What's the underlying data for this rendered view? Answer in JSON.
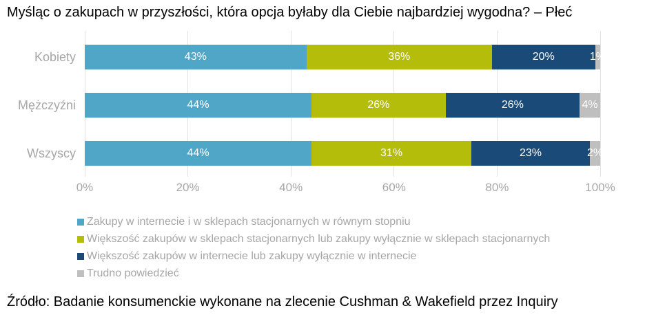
{
  "title": "Myśląc o zakupach w przyszłości, która opcja byłaby dla Ciebie najbardziej wygodna? – Płeć",
  "source": "Źródło: Badanie konsumenckie wykonane na zlecenie Cushman & Wakefield przez Inquiry",
  "chart_data": {
    "type": "bar",
    "orientation": "horizontal",
    "stacked": true,
    "unit": "%",
    "title": "Myśląc o zakupach w przyszłości, która opcja byłaby dla Ciebie najbardziej wygodna? – Płeć",
    "categories": [
      "Kobiety",
      "Mężczyźni",
      "Wszyscy"
    ],
    "series": [
      {
        "name": "Zakupy w internecie i w sklepach stacjonarnych w równym stopniu",
        "color": "#4fa6c6",
        "values": [
          43,
          44,
          44
        ]
      },
      {
        "name": "Większość zakupów w sklepach stacjonarnych lub zakupy wyłącznie w sklepach stacjonarnych",
        "color": "#b5bd0b",
        "values": [
          36,
          26,
          31
        ]
      },
      {
        "name": "Większość zakupów w internecie lub zakupy wyłącznie w internecie",
        "color": "#1a4a78",
        "values": [
          20,
          26,
          23
        ]
      },
      {
        "name": "Trudno powiedzieć",
        "color": "#bfbfbf",
        "values": [
          1,
          4,
          2
        ]
      }
    ],
    "data_labels": true,
    "data_label_format": "{value}%",
    "xlim": [
      0,
      100
    ],
    "x_ticks": [
      {
        "value": 0,
        "label": "0%"
      },
      {
        "value": 20,
        "label": "20%"
      },
      {
        "value": 40,
        "label": "40%"
      },
      {
        "value": 60,
        "label": "60%"
      },
      {
        "value": 80,
        "label": "80%"
      },
      {
        "value": 100,
        "label": "100%"
      }
    ],
    "grid": "vertical",
    "legend_position": "bottom-left",
    "text_color": "#a6a6a6",
    "label_color_on_bar": "#ffffff"
  }
}
